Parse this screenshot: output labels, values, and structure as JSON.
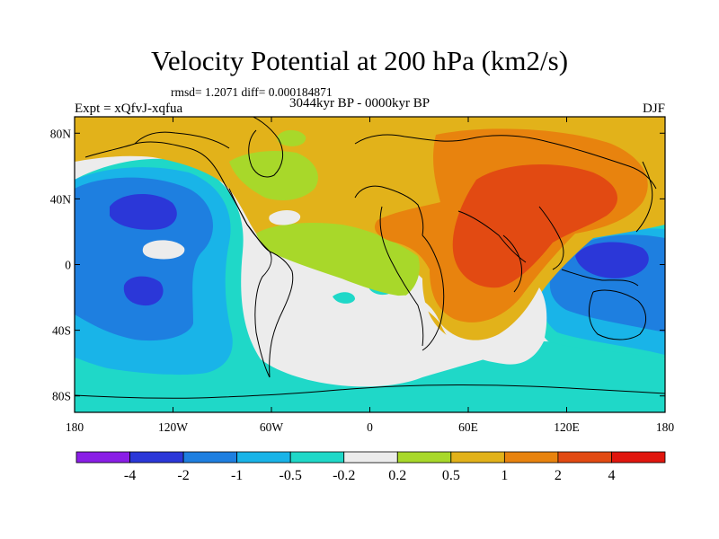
{
  "chart_data": {
    "type": "heatmap",
    "title": "Velocity Potential at 200 hPa (km2/s)",
    "subtitle": "rmsd= 1.2071 diff= 0.000184871",
    "center_label": "3044kyr BP - 0000kyr BP",
    "left_label": "Expt = xQfvJ-xqfua",
    "right_label": "DJF",
    "x_ticks": [
      {
        "label": "180",
        "value": -180
      },
      {
        "label": "120W",
        "value": -120
      },
      {
        "label": "60W",
        "value": -60
      },
      {
        "label": "0",
        "value": 0
      },
      {
        "label": "60E",
        "value": 60
      },
      {
        "label": "120E",
        "value": 120
      },
      {
        "label": "180",
        "value": 180
      }
    ],
    "y_ticks": [
      {
        "label": "80N",
        "value": 80
      },
      {
        "label": "40N",
        "value": 40
      },
      {
        "label": "0",
        "value": 0
      },
      {
        "label": "40S",
        "value": -40
      },
      {
        "label": "80S",
        "value": -80
      }
    ],
    "xlim": [
      -180,
      180
    ],
    "ylim": [
      -90,
      90
    ],
    "colorbar": {
      "colors": [
        "#8a1ee6",
        "#2b37d8",
        "#1e7fe0",
        "#19b4e8",
        "#1fd8c8",
        "#ececec",
        "#a8d82a",
        "#e2b21a",
        "#e8830e",
        "#e24a12",
        "#e0160e"
      ],
      "labels": [
        "-4",
        "-2",
        "-1",
        "-0.5",
        "-0.2",
        "0.2",
        "0.5",
        "1",
        "2",
        "4"
      ],
      "levels": [
        -4,
        -2,
        -1,
        -0.5,
        -0.2,
        0.2,
        0.5,
        1,
        2,
        4
      ]
    }
  }
}
